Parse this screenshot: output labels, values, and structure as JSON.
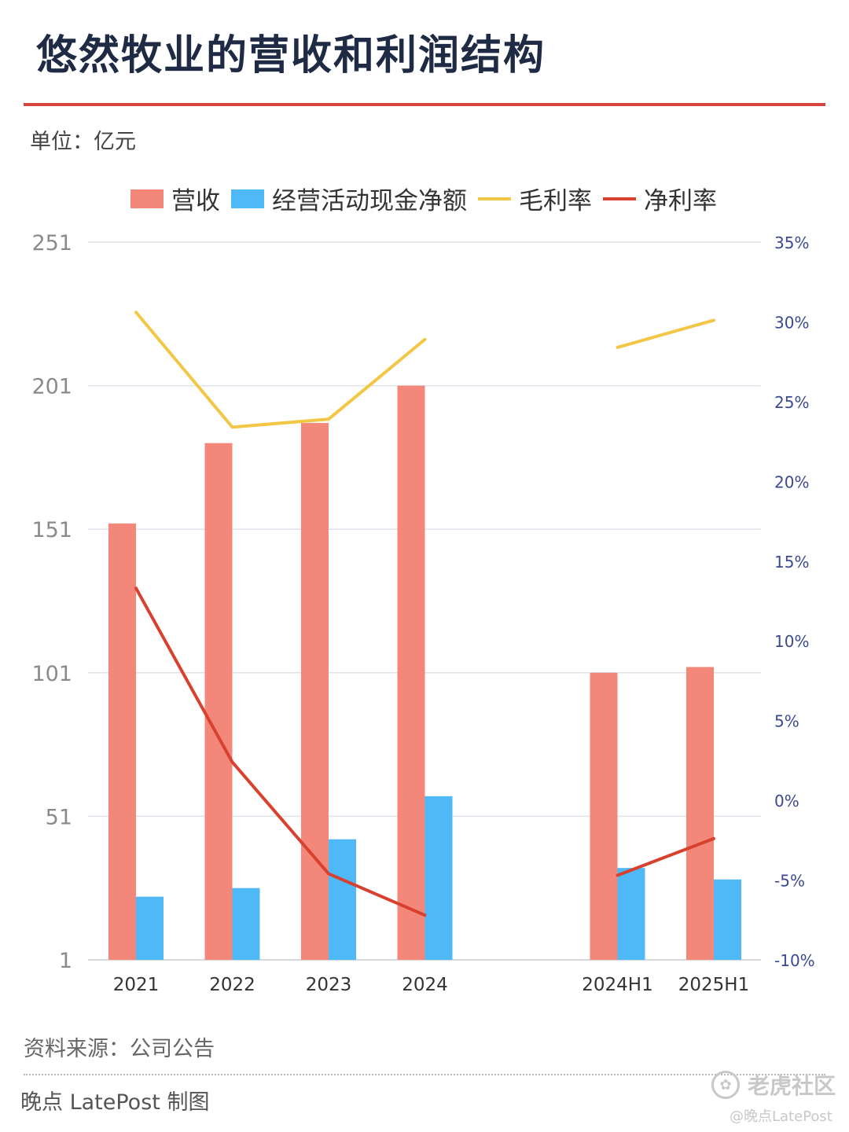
{
  "title": "悠然牧业的营收和利润结构",
  "unit_label": "单位：亿元",
  "source_label": "资料来源：公司公告",
  "credit_label": "晚点 LatePost 制图",
  "watermark": {
    "site": "老虎社区",
    "handle": "@晚点LatePost"
  },
  "colors": {
    "revenue": "#f2877a",
    "cashflow": "#4fb8f7",
    "gross_margin": "#f3c646",
    "net_margin": "#d9412f",
    "title": "#1f2a44",
    "rule": "#d6453d",
    "right_axis_text": "#3b4a8f"
  },
  "chart_data": {
    "type": "bar",
    "categories": [
      "2021",
      "2022",
      "2023",
      "2024",
      "",
      "2024H1",
      "2025H1"
    ],
    "left_axis": {
      "ticks": [
        "251",
        "201",
        "151",
        "101",
        "51",
        "1"
      ],
      "ylim": [
        1,
        251
      ]
    },
    "right_axis": {
      "ticks": [
        "35%",
        "30%",
        "25%",
        "20%",
        "15%",
        "10%",
        "5%",
        "0%",
        "-5%",
        "-10%"
      ],
      "ylim": [
        -10,
        35
      ]
    },
    "legend": [
      "营收",
      "经营活动现金净额",
      "毛利率",
      "净利率"
    ],
    "grid": true,
    "series": [
      {
        "name": "营收",
        "kind": "bar",
        "axis": "left",
        "values": [
          153,
          181,
          188,
          201,
          null,
          101,
          103
        ]
      },
      {
        "name": "经营活动现金净额",
        "kind": "bar",
        "axis": "left",
        "values": [
          23,
          26,
          43,
          58,
          null,
          33,
          29
        ]
      },
      {
        "name": "毛利率",
        "kind": "line",
        "axis": "right",
        "values": [
          30.6,
          23.4,
          23.9,
          28.9,
          null,
          28.4,
          30.1
        ]
      },
      {
        "name": "净利率",
        "kind": "line",
        "axis": "right",
        "values": [
          13.3,
          2.4,
          -4.6,
          -7.2,
          null,
          -4.7,
          -2.4
        ]
      }
    ]
  }
}
